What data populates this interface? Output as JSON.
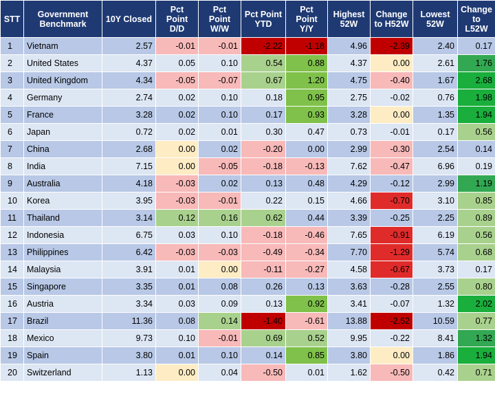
{
  "table": {
    "headers": [
      "STT",
      "Government Benchmark",
      "10Y Closed",
      "Pct Point D/D",
      "Pct Point W/W",
      "Pct Point YTD",
      "Pct Point Y/Y",
      "Highest 52W",
      "Change to H52W",
      "Lowest 52W",
      "Change to L52W"
    ],
    "rows": [
      {
        "stt": "1",
        "name": "Vietnam",
        "closed": "2.57",
        "dd": "-0.01",
        "ww": "-0.01",
        "ytd": "-2.22",
        "yy": "-1.18",
        "h52": "4.96",
        "ch52": "-2.39",
        "l52": "2.40",
        "cl52": "0.17"
      },
      {
        "stt": "2",
        "name": "United States",
        "closed": "4.37",
        "dd": "0.05",
        "ww": "0.10",
        "ytd": "0.54",
        "yy": "0.88",
        "h52": "4.37",
        "ch52": "0.00",
        "l52": "2.61",
        "cl52": "1.76"
      },
      {
        "stt": "3",
        "name": "United Kingdom",
        "closed": "4.34",
        "dd": "-0.05",
        "ww": "-0.07",
        "ytd": "0.67",
        "yy": "1.20",
        "h52": "4.75",
        "ch52": "-0.40",
        "l52": "1.67",
        "cl52": "2.68"
      },
      {
        "stt": "4",
        "name": "Germany",
        "closed": "2.74",
        "dd": "0.02",
        "ww": "0.10",
        "ytd": "0.18",
        "yy": "0.95",
        "h52": "2.75",
        "ch52": "-0.02",
        "l52": "0.76",
        "cl52": "1.98"
      },
      {
        "stt": "5",
        "name": "France",
        "closed": "3.28",
        "dd": "0.02",
        "ww": "0.10",
        "ytd": "0.17",
        "yy": "0.93",
        "h52": "3.28",
        "ch52": "0.00",
        "l52": "1.35",
        "cl52": "1.94"
      },
      {
        "stt": "6",
        "name": "Japan",
        "closed": "0.72",
        "dd": "0.02",
        "ww": "0.01",
        "ytd": "0.30",
        "yy": "0.47",
        "h52": "0.73",
        "ch52": "-0.01",
        "l52": "0.17",
        "cl52": "0.56"
      },
      {
        "stt": "7",
        "name": "China",
        "closed": "2.68",
        "dd": "0.00",
        "ww": "0.02",
        "ytd": "-0.20",
        "yy": "0.00",
        "h52": "2.99",
        "ch52": "-0.30",
        "l52": "2.54",
        "cl52": "0.14"
      },
      {
        "stt": "8",
        "name": "India",
        "closed": "7.15",
        "dd": "0.00",
        "ww": "-0.05",
        "ytd": "-0.18",
        "yy": "-0.13",
        "h52": "7.62",
        "ch52": "-0.47",
        "l52": "6.96",
        "cl52": "0.19"
      },
      {
        "stt": "9",
        "name": "Australia",
        "closed": "4.18",
        "dd": "-0.03",
        "ww": "0.02",
        "ytd": "0.13",
        "yy": "0.48",
        "h52": "4.29",
        "ch52": "-0.12",
        "l52": "2.99",
        "cl52": "1.19"
      },
      {
        "stt": "10",
        "name": "Korea",
        "closed": "3.95",
        "dd": "-0.03",
        "ww": "-0.01",
        "ytd": "0.22",
        "yy": "0.15",
        "h52": "4.66",
        "ch52": "-0.70",
        "l52": "3.10",
        "cl52": "0.85"
      },
      {
        "stt": "11",
        "name": "Thailand",
        "closed": "3.14",
        "dd": "0.12",
        "ww": "0.16",
        "ytd": "0.62",
        "yy": "0.44",
        "h52": "3.39",
        "ch52": "-0.25",
        "l52": "2.25",
        "cl52": "0.89"
      },
      {
        "stt": "12",
        "name": "Indonesia",
        "closed": "6.75",
        "dd": "0.03",
        "ww": "0.10",
        "ytd": "-0.18",
        "yy": "-0.46",
        "h52": "7.65",
        "ch52": "-0.91",
        "l52": "6.19",
        "cl52": "0.56"
      },
      {
        "stt": "13",
        "name": "Philippines",
        "closed": "6.42",
        "dd": "-0.03",
        "ww": "-0.03",
        "ytd": "-0.49",
        "yy": "-0.34",
        "h52": "7.70",
        "ch52": "-1.29",
        "l52": "5.74",
        "cl52": "0.68"
      },
      {
        "stt": "14",
        "name": "Malaysia",
        "closed": "3.91",
        "dd": "0.01",
        "ww": "0.00",
        "ytd": "-0.11",
        "yy": "-0.27",
        "h52": "4.58",
        "ch52": "-0.67",
        "l52": "3.73",
        "cl52": "0.17"
      },
      {
        "stt": "15",
        "name": "Singapore",
        "closed": "3.35",
        "dd": "0.01",
        "ww": "0.08",
        "ytd": "0.26",
        "yy": "0.13",
        "h52": "3.63",
        "ch52": "-0.28",
        "l52": "2.55",
        "cl52": "0.80"
      },
      {
        "stt": "16",
        "name": "Austria",
        "closed": "3.34",
        "dd": "0.03",
        "ww": "0.09",
        "ytd": "0.13",
        "yy": "0.92",
        "h52": "3.41",
        "ch52": "-0.07",
        "l52": "1.32",
        "cl52": "2.02"
      },
      {
        "stt": "17",
        "name": "Brazil",
        "closed": "11.36",
        "dd": "0.08",
        "ww": "0.14",
        "ytd": "-1.40",
        "yy": "-0.61",
        "h52": "13.88",
        "ch52": "-2.52",
        "l52": "10.59",
        "cl52": "0.77"
      },
      {
        "stt": "18",
        "name": "Mexico",
        "closed": "9.73",
        "dd": "0.10",
        "ww": "-0.01",
        "ytd": "0.69",
        "yy": "0.52",
        "h52": "9.95",
        "ch52": "-0.22",
        "l52": "8.41",
        "cl52": "1.32"
      },
      {
        "stt": "19",
        "name": "Spain",
        "closed": "3.80",
        "dd": "0.01",
        "ww": "0.10",
        "ytd": "0.14",
        "yy": "0.85",
        "h52": "3.80",
        "ch52": "0.00",
        "l52": "1.86",
        "cl52": "1.94"
      },
      {
        "stt": "20",
        "name": "Switzerland",
        "closed": "1.13",
        "dd": "0.00",
        "ww": "0.04",
        "ytd": "-0.50",
        "yy": "0.01",
        "h52": "1.62",
        "ch52": "-0.50",
        "l52": "0.42",
        "cl52": "0.71"
      }
    ]
  },
  "colors": {
    "header_bg": "#1f3a73",
    "row_odd": "#b8c8e6",
    "row_even": "#dde6f3",
    "neg_light": "#f8b9b9",
    "neg_mid": "#ef6f6f",
    "neg_strong": "#e02b2b",
    "neg_dark": "#c00000",
    "zero": "#fdecc4",
    "pos_pale": "#d9ebd0",
    "pos_light": "#a9d18e",
    "pos_mid": "#7fc14a",
    "pos_strong": "#33a852",
    "pos_bright": "#1aae3c"
  }
}
